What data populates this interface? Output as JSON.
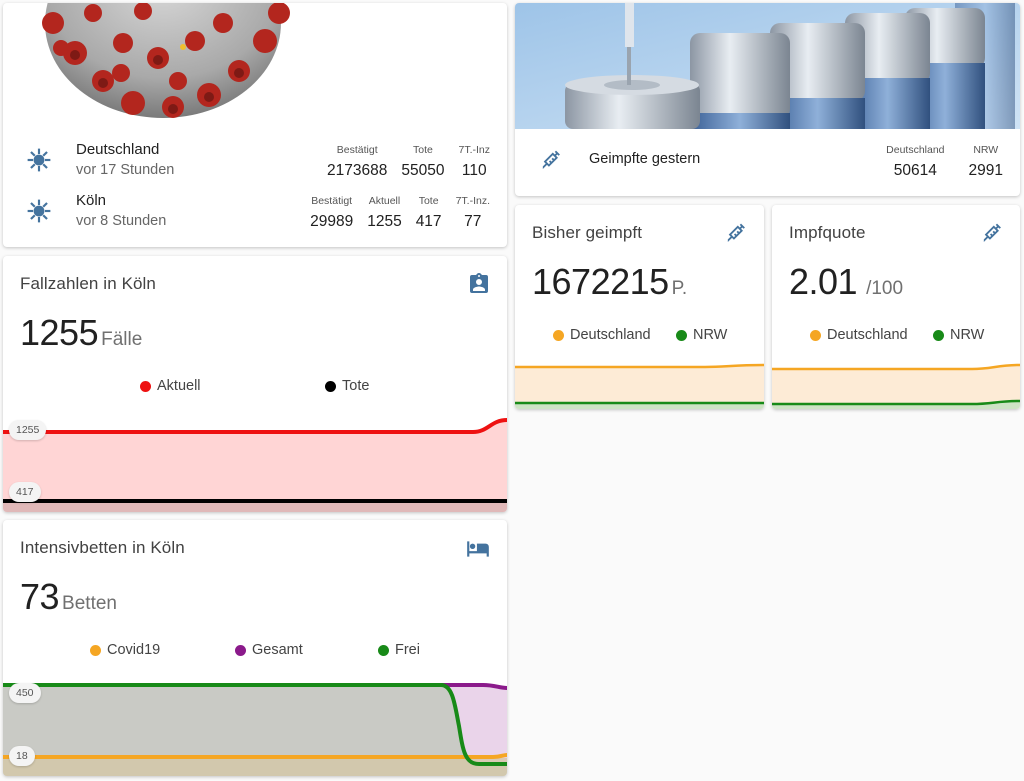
{
  "corona": {
    "rows": [
      {
        "name": "Deutschland",
        "time": "vor 17 Stunden",
        "stats": [
          {
            "header": "Bestätigt",
            "value": "2173688"
          },
          {
            "header": "Tote",
            "value": "55050"
          },
          {
            "header": "7T.-Inz",
            "value": "110"
          }
        ]
      },
      {
        "name": "Köln",
        "time": "vor 8 Stunden",
        "stats": [
          {
            "header": "Bestätigt",
            "value": "29989"
          },
          {
            "header": "Aktuell",
            "value": "1255"
          },
          {
            "header": "Tote",
            "value": "417"
          },
          {
            "header": "7T.-Inz.",
            "value": "77"
          }
        ]
      }
    ]
  },
  "vaccine_yesterday": {
    "title": "Geimpfte gestern",
    "stats": [
      {
        "header": "Deutschland",
        "value": "50614"
      },
      {
        "header": "NRW",
        "value": "2991"
      }
    ]
  },
  "fallzahlen": {
    "title": "Fallzahlen in Köln",
    "value": "1255",
    "unit": "Fälle",
    "legend": [
      {
        "label": "Aktuell",
        "color": "#ee1111"
      },
      {
        "label": "Tote",
        "color": "#000000"
      }
    ],
    "labels": {
      "top": "1255",
      "bottom": "417"
    }
  },
  "intensiv": {
    "title": "Intensivbetten in Köln",
    "value": "73",
    "unit": "Betten",
    "legend": [
      {
        "label": "Covid19",
        "color": "#f5a623"
      },
      {
        "label": "Gesamt",
        "color": "#8b1a8b"
      },
      {
        "label": "Frei",
        "color": "#188a18"
      }
    ],
    "labels": {
      "top": "450",
      "bottom": "18"
    }
  },
  "bisher": {
    "title": "Bisher geimpft",
    "value": "1672215",
    "unit": "P.",
    "legend": [
      {
        "label": "Deutschland",
        "color": "#f5a623"
      },
      {
        "label": "NRW",
        "color": "#188a18"
      }
    ]
  },
  "impfquote": {
    "title": "Impfquote",
    "value": "2.01",
    "unit": "/100",
    "legend": [
      {
        "label": "Deutschland",
        "color": "#f5a623"
      },
      {
        "label": "NRW",
        "color": "#188a18"
      }
    ]
  },
  "colors": {
    "accent": "#44739e"
  }
}
